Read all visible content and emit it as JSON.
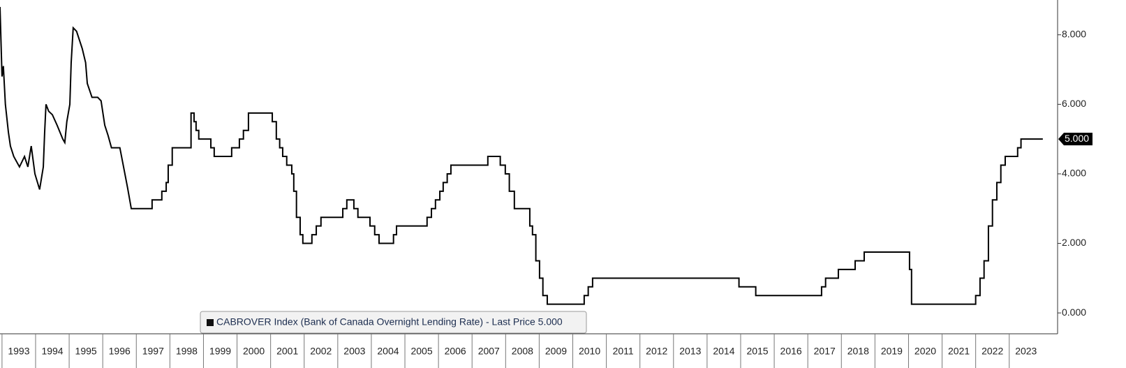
{
  "chart_data": {
    "type": "line",
    "x": [
      1992.94,
      1993,
      1993.04,
      1993.1,
      1993.19,
      1993.25,
      1993.35,
      1993.52,
      1993.67,
      1993.77,
      1993.87,
      1993.98,
      1994.12,
      1994.23,
      1994.27,
      1994.31,
      1994.39,
      1994.5,
      1994.64,
      1994.81,
      1994.87,
      1994.93,
      1995.02,
      1995.06,
      1995.12,
      1995.22,
      1995.39,
      1995.49,
      1995.54,
      1995.68,
      1995.85,
      1995.95,
      1996.06,
      1996.16,
      1996.26,
      1996.51,
      1996.64,
      1996.74,
      1996.85,
      1997.47,
      1997.47,
      1997.76,
      1997.76,
      1997.89,
      1997.89,
      1997.95,
      1997.95,
      1998.07,
      1998.07,
      1998.63,
      1998.63,
      1998.72,
      1998.72,
      1998.78,
      1998.78,
      1998.86,
      1998.86,
      1999.22,
      1999.22,
      1999.32,
      1999.32,
      1999.84,
      1999.84,
      2000.07,
      2000.07,
      2000.19,
      2000.19,
      2000.34,
      2000.34,
      2001.05,
      2001.05,
      2001.17,
      2001.17,
      2001.27,
      2001.27,
      2001.36,
      2001.36,
      2001.48,
      2001.48,
      2001.63,
      2001.63,
      2001.69,
      2001.69,
      2001.77,
      2001.77,
      2001.88,
      2001.88,
      2001.96,
      2001.96,
      2002.23,
      2002.23,
      2002.36,
      2002.36,
      2002.5,
      2002.5,
      2003.15,
      2003.15,
      2003.27,
      2003.27,
      2003.48,
      2003.48,
      2003.6,
      2003.6,
      2003.96,
      2003.96,
      2004.1,
      2004.1,
      2004.23,
      2004.23,
      2004.66,
      2004.66,
      2004.75,
      2004.75,
      2005.66,
      2005.66,
      2005.79,
      2005.79,
      2005.91,
      2005.91,
      2006.04,
      2006.04,
      2006.14,
      2006.14,
      2006.26,
      2006.26,
      2006.37,
      2006.37,
      2007.47,
      2007.47,
      2007.84,
      2007.84,
      2007.99,
      2007.99,
      2008.11,
      2008.11,
      2008.26,
      2008.26,
      2008.72,
      2008.72,
      2008.8,
      2008.8,
      2008.9,
      2008.9,
      2009.01,
      2009.01,
      2009.11,
      2009.11,
      2009.24,
      2009.24,
      2010.34,
      2010.34,
      2010.46,
      2010.46,
      2010.59,
      2010.59,
      2014.95,
      2014.95,
      2015.45,
      2015.45,
      2017.41,
      2017.41,
      2017.53,
      2017.53,
      2017.91,
      2017.91,
      2018.41,
      2018.41,
      2018.68,
      2018.68,
      2020.03,
      2020.03,
      2020.09,
      2020.09,
      2022.0,
      2022.0,
      2022.13,
      2022.13,
      2022.25,
      2022.25,
      2022.38,
      2022.38,
      2022.5,
      2022.5,
      2022.63,
      2022.63,
      2022.75,
      2022.75,
      2022.88,
      2022.88,
      2023.25,
      2023.25,
      2023.35,
      2023.35,
      2024.0
    ],
    "series": [
      {
        "name": "CABROVER Index (Bank of Canada Overnight Lending Rate) - Last Price 5.000",
        "color": "#000000",
        "values": [
          8.8,
          6.8,
          7.1,
          6,
          5.2,
          4.8,
          4.5,
          4.2,
          4.5,
          4.2,
          4.8,
          4,
          3.55,
          4.2,
          5.2,
          6,
          5.8,
          5.7,
          5.4,
          5,
          4.9,
          5.5,
          6,
          7.2,
          8.2,
          8.1,
          7.6,
          7.2,
          6.6,
          6.2,
          6.2,
          6.1,
          5.4,
          5.1,
          4.75,
          4.75,
          4.1,
          3.6,
          3,
          3,
          3.25,
          3.25,
          3.5,
          3.5,
          3.75,
          3.75,
          4.25,
          4.25,
          4.75,
          4.75,
          5.75,
          5.75,
          5.5,
          5.5,
          5.25,
          5.25,
          5,
          5,
          4.75,
          4.75,
          4.5,
          4.5,
          4.75,
          4.75,
          5,
          5,
          5.25,
          5.25,
          5.75,
          5.75,
          5.5,
          5.5,
          5,
          5,
          4.75,
          4.75,
          4.5,
          4.5,
          4.25,
          4.25,
          4,
          4,
          3.5,
          3.5,
          2.75,
          2.75,
          2.25,
          2.25,
          2,
          2,
          2.25,
          2.25,
          2.5,
          2.5,
          2.75,
          2.75,
          3,
          3,
          3.25,
          3.25,
          3,
          3,
          2.75,
          2.75,
          2.5,
          2.5,
          2.25,
          2.25,
          2,
          2,
          2.25,
          2.25,
          2.5,
          2.5,
          2.75,
          2.75,
          3,
          3,
          3.25,
          3.25,
          3.5,
          3.5,
          3.75,
          3.75,
          4,
          4,
          4.25,
          4.25,
          4.5,
          4.5,
          4.25,
          4.25,
          4,
          4,
          3.5,
          3.5,
          3,
          3,
          2.5,
          2.5,
          2.25,
          2.25,
          1.5,
          1.5,
          1,
          1,
          0.5,
          0.5,
          0.25,
          0.25,
          0.5,
          0.5,
          0.75,
          0.75,
          1,
          1,
          0.75,
          0.75,
          0.5,
          0.5,
          0.75,
          0.75,
          1,
          1,
          1.25,
          1.25,
          1.5,
          1.5,
          1.75,
          1.75,
          1.25,
          1.25,
          0.25,
          0.25,
          0.5,
          0.5,
          1,
          1,
          1.5,
          1.5,
          2.5,
          2.5,
          3.25,
          3.25,
          3.75,
          3.75,
          4.25,
          4.25,
          4.5,
          4.5,
          4.75,
          4.75,
          5,
          5
        ]
      }
    ],
    "xlim": [
      1992.94,
      2024.44
    ],
    "xticks": [
      1993,
      1994,
      1995,
      1996,
      1997,
      1998,
      1999,
      2000,
      2001,
      2002,
      2003,
      2004,
      2005,
      2006,
      2007,
      2008,
      2009,
      2010,
      2011,
      2012,
      2013,
      2014,
      2015,
      2016,
      2017,
      2018,
      2019,
      2020,
      2021,
      2022,
      2023
    ],
    "ylim": [
      -0.6,
      9.0
    ],
    "yticks": [
      {
        "value": 0,
        "label": "0.000"
      },
      {
        "value": 2,
        "label": "2.000"
      },
      {
        "value": 4,
        "label": "4.000"
      },
      {
        "value": 6,
        "label": "6.000"
      },
      {
        "value": 8,
        "label": "8.000"
      }
    ],
    "last_price": {
      "value": 5,
      "label": "5.000"
    }
  }
}
